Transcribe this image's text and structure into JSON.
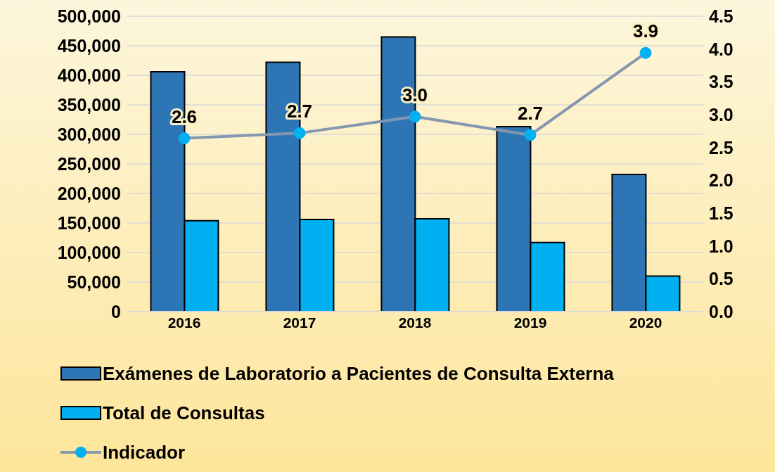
{
  "chart_data": {
    "type": "bar",
    "categories": [
      "2016",
      "2017",
      "2018",
      "2019",
      "2020"
    ],
    "series": [
      {
        "name": "Exámenes de Laboratorio a Pacientes de Consulta Externa",
        "color": "#2e75b6",
        "values": [
          406000,
          422000,
          465000,
          313000,
          232000
        ]
      },
      {
        "name": "Total de Consultas",
        "color": "#00b0f0",
        "values": [
          154000,
          156000,
          157000,
          117000,
          60000
        ]
      },
      {
        "name": "Indicador",
        "type": "line",
        "axis": "y2",
        "color": "#8497b0",
        "marker": "circle",
        "values": [
          2.64,
          2.72,
          2.97,
          2.69,
          3.94
        ],
        "value_labels": [
          "2.6",
          "2.7",
          "3.0",
          "2.7",
          "3.9"
        ]
      }
    ],
    "ylim": [
      0,
      500000
    ],
    "yticks": [
      0,
      {
        "value": 50000,
        "label": "50,000"
      },
      {
        "value": 100000,
        "label": "100,000"
      },
      {
        "value": 150000,
        "label": "150,000"
      },
      {
        "value": 200000,
        "label": "200,000"
      },
      {
        "value": 250000,
        "label": "250,000"
      },
      {
        "value": 300000,
        "label": "300,000"
      },
      {
        "value": 350000,
        "label": "350,000"
      },
      {
        "value": 400000,
        "label": "400,000"
      },
      {
        "value": 450000,
        "label": "450,000"
      },
      {
        "value": 500000,
        "label": "500,000"
      }
    ],
    "y2lim": [
      0,
      4.5
    ],
    "y2ticks": [
      {
        "value": 0,
        "label": "0.0"
      },
      {
        "value": 0.5,
        "label": "0.5"
      },
      {
        "value": 1,
        "label": "1.0"
      },
      {
        "value": 1.5,
        "label": "1.5"
      },
      {
        "value": 2,
        "label": "2.0"
      },
      {
        "value": 2.5,
        "label": "2.5"
      },
      {
        "value": 3,
        "label": "3.0"
      },
      {
        "value": 3.5,
        "label": "3.5"
      },
      {
        "value": 4,
        "label": "4.0"
      },
      {
        "value": 4.5,
        "label": "4.5"
      }
    ],
    "grid": "y",
    "legend": "bottom"
  }
}
